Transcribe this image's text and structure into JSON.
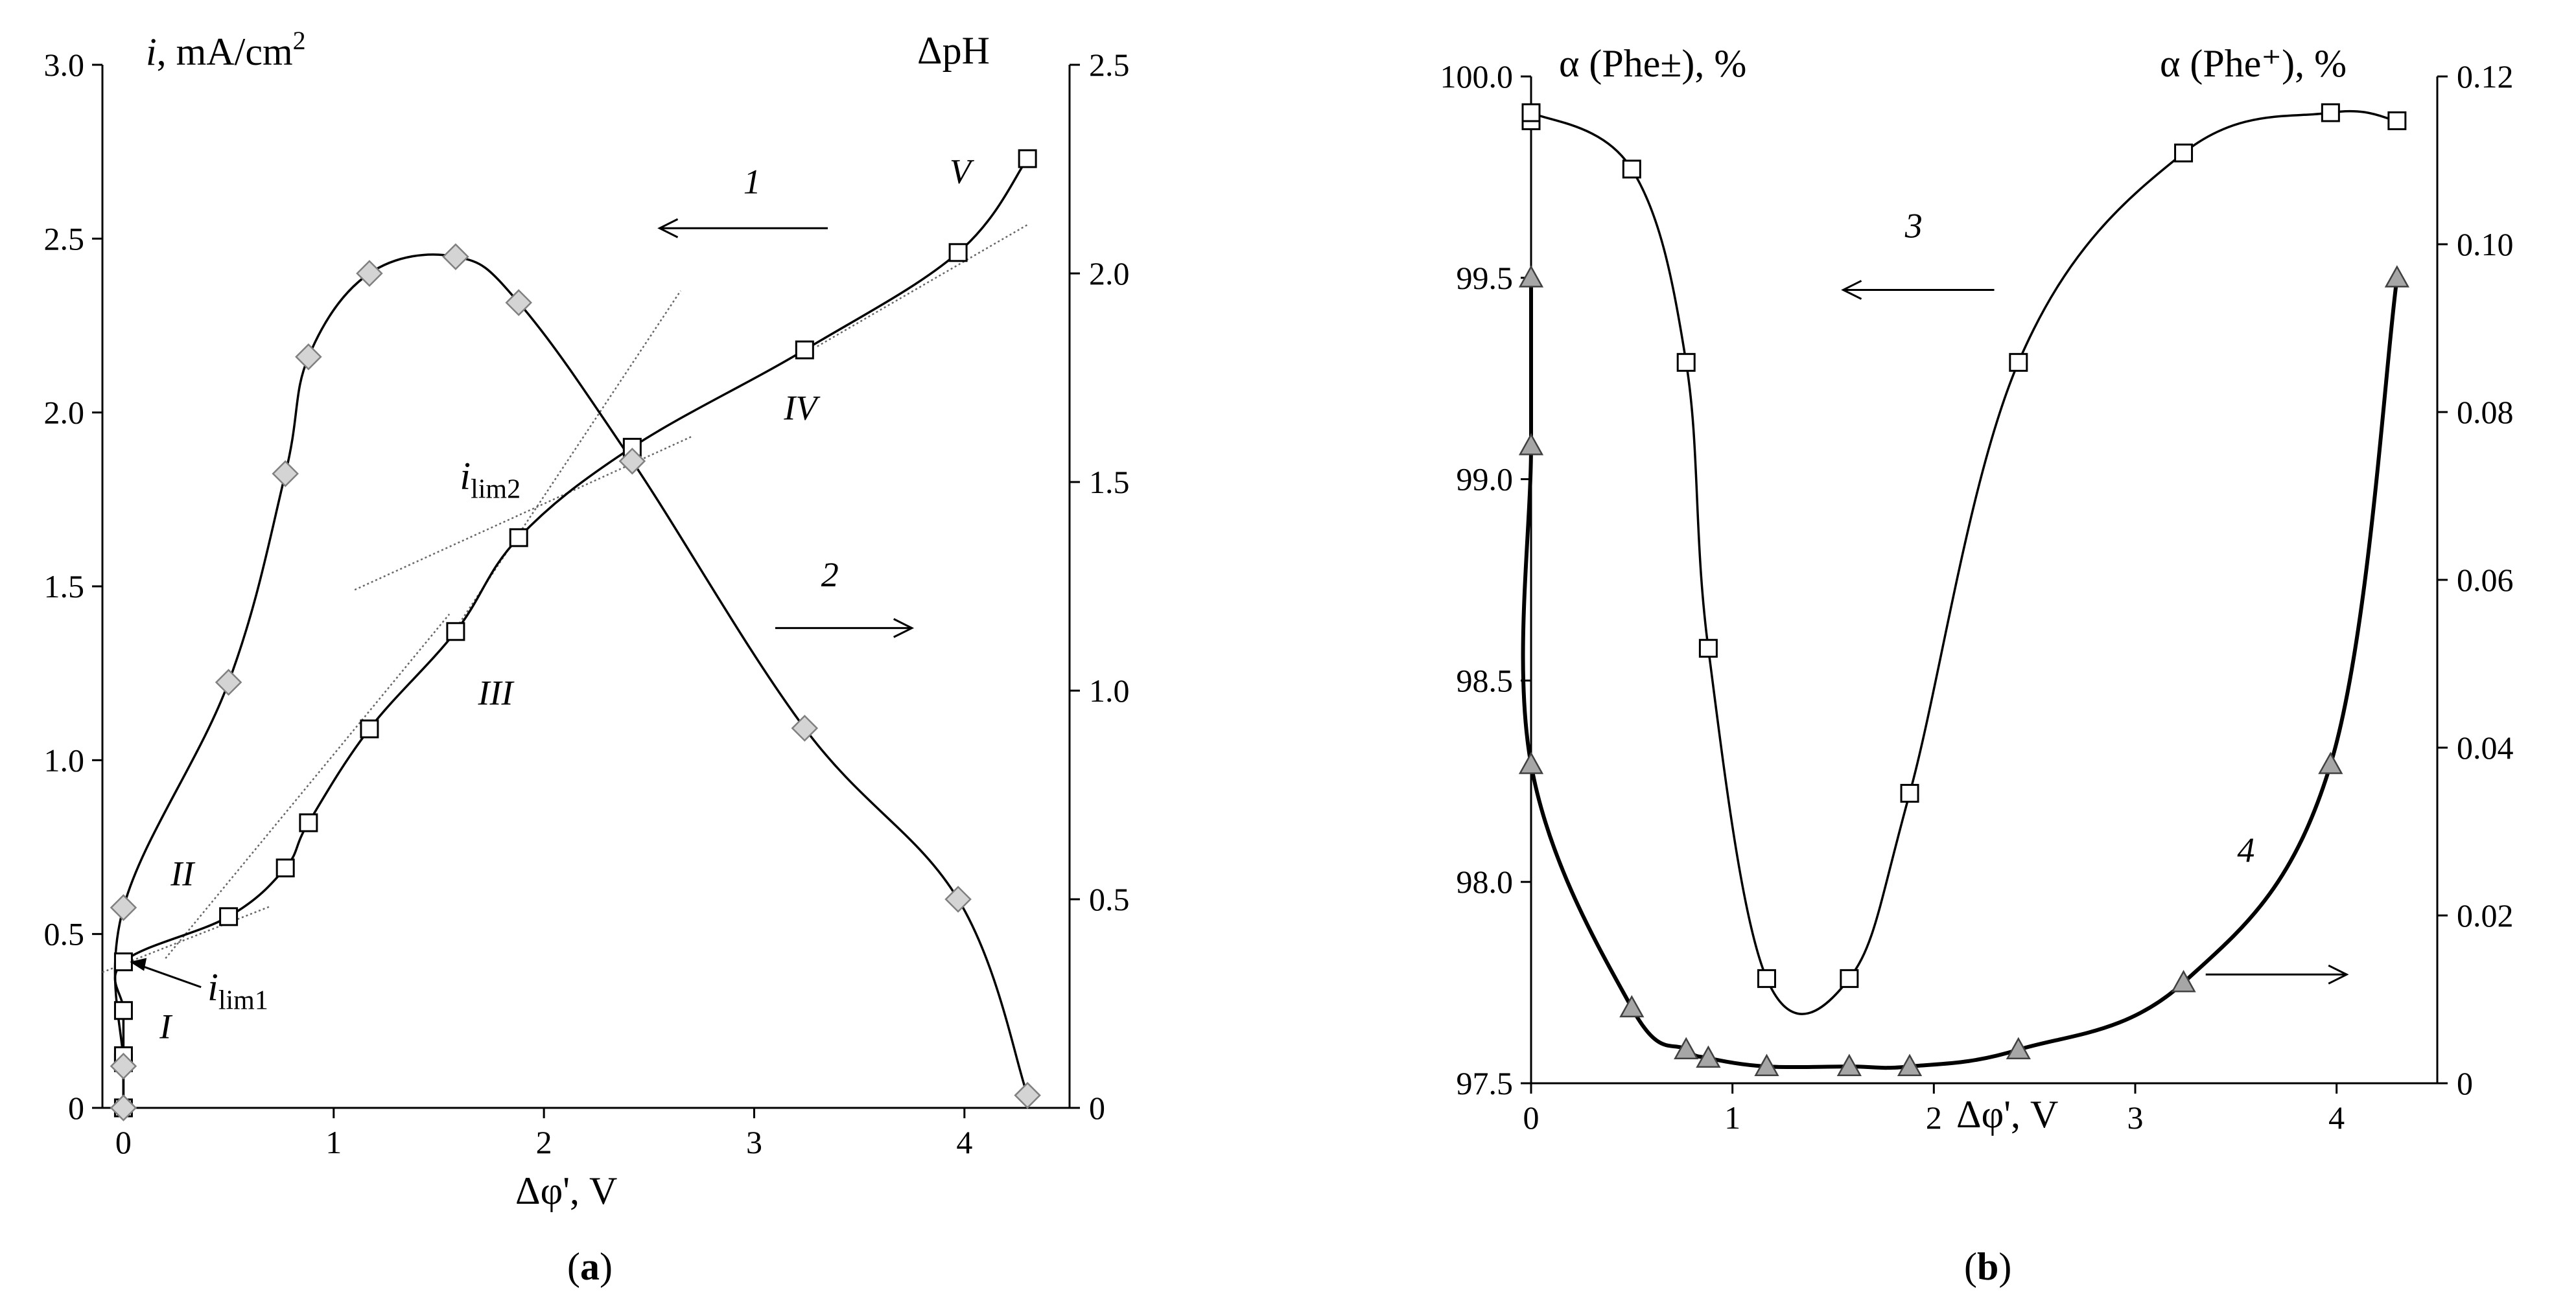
{
  "chart_data": [
    {
      "panel": "a",
      "type": "scatter",
      "caption": "a",
      "y_axis_left": {
        "label_main": "i",
        "label_rest": ", mA/cm",
        "label_sup": "2",
        "range": [
          0,
          3.0
        ],
        "ticks": [
          "0",
          "0.5",
          "1.0",
          "1.5",
          "2.0",
          "2.5",
          "3.0"
        ]
      },
      "y_axis_right": {
        "label": "ΔpH",
        "range": [
          0,
          2.5
        ],
        "ticks": [
          "0",
          "0.5",
          "1.0",
          "1.5",
          "2.0",
          "2.5"
        ]
      },
      "x_axis": {
        "label": "Δφ', V",
        "range": [
          -0.1,
          4.5
        ],
        "ticks": [
          "0",
          "1",
          "2",
          "3",
          "4"
        ]
      },
      "series": [
        {
          "id": "1",
          "axis": "left",
          "marker": "square",
          "x": [
            0,
            0,
            0,
            0,
            0,
            0.5,
            0.77,
            0.88,
            1.17,
            1.58,
            1.88,
            2.42,
            3.24,
            3.97,
            4.3
          ],
          "y": [
            0,
            0.13,
            0.15,
            0.28,
            0.42,
            0.55,
            0.69,
            0.82,
            1.09,
            1.37,
            1.64,
            1.9,
            2.18,
            2.46,
            2.73
          ]
        },
        {
          "id": "2",
          "axis": "right",
          "marker": "diamond",
          "x": [
            0,
            0,
            0,
            0.5,
            0.77,
            0.88,
            1.17,
            1.58,
            1.88,
            2.42,
            3.24,
            3.97,
            4.3
          ],
          "y": [
            0,
            0.1,
            0.48,
            1.02,
            1.52,
            1.8,
            2.0,
            2.04,
            1.93,
            1.55,
            0.91,
            0.5,
            0.03
          ]
        }
      ],
      "tangent_lines": [
        {
          "x": [
            -0.1,
            0.7
          ],
          "y": [
            0.39,
            0.58
          ]
        },
        {
          "x": [
            0.2,
            1.55
          ],
          "y": [
            0.43,
            1.42
          ]
        },
        {
          "x": [
            1.1,
            2.7
          ],
          "y": [
            1.49,
            1.93
          ]
        },
        {
          "x": [
            1.55,
            2.65
          ],
          "y": [
            1.35,
            2.35
          ]
        },
        {
          "x": [
            3.3,
            4.3
          ],
          "y": [
            2.19,
            2.54
          ]
        }
      ],
      "annotations": [
        {
          "text": "I",
          "x": 0.2,
          "y": 0.2
        },
        {
          "text": "II",
          "x": 0.28,
          "y": 0.64
        },
        {
          "text": "III",
          "x": 1.77,
          "y": 1.16
        },
        {
          "text": "IV",
          "x": 3.22,
          "y": 1.98
        },
        {
          "text": "V",
          "x": 3.98,
          "y": 2.66
        },
        {
          "text": "1",
          "x": 2.99,
          "y": 2.63
        },
        {
          "text": "2",
          "x": 3.36,
          "y": 1.5
        }
      ],
      "ilim1": {
        "main": "i",
        "sub": "lim1",
        "x": 0.4,
        "y": 0.31,
        "arrow_to": [
          0.03,
          0.42
        ]
      },
      "ilim2": {
        "main": "i",
        "sub": "lim2",
        "x": 1.6,
        "y": 1.78
      },
      "arrows": [
        {
          "from": [
            3.35,
            2.53
          ],
          "to": [
            2.55,
            2.53
          ]
        },
        {
          "from": [
            3.1,
            1.38
          ],
          "to": [
            3.75,
            1.38
          ]
        }
      ]
    },
    {
      "panel": "b",
      "type": "scatter",
      "caption": "b",
      "y_axis_left": {
        "label": "α (Phe±), %",
        "range": [
          97.5,
          100.0
        ],
        "ticks": [
          "97.5",
          "98.0",
          "98.5",
          "99.0",
          "99.5",
          "100.0"
        ]
      },
      "y_axis_right": {
        "label": "α (Phe⁺), %",
        "range": [
          0,
          0.12
        ],
        "ticks": [
          "0",
          "0.02",
          "0.04",
          "0.06",
          "0.08",
          "0.10",
          "0.12"
        ]
      },
      "x_axis": {
        "label": "Δφ', V",
        "range": [
          0,
          4.5
        ],
        "ticks": [
          "0",
          "1",
          "2",
          "3",
          "4"
        ]
      },
      "series": [
        {
          "id": "3",
          "axis": "left",
          "marker": "square",
          "x": [
            0,
            0,
            0.5,
            0.77,
            0.88,
            1.17,
            1.58,
            1.88,
            2.42,
            3.24,
            3.97,
            4.3
          ],
          "y": [
            99.89,
            99.91,
            99.77,
            99.29,
            98.58,
            97.76,
            97.76,
            98.22,
            99.29,
            99.81,
            99.91,
            99.89
          ]
        },
        {
          "id": "4",
          "axis": "right",
          "marker": "triangle",
          "x": [
            0,
            0,
            0,
            0.5,
            0.77,
            0.88,
            1.17,
            1.58,
            1.88,
            2.42,
            3.24,
            3.97,
            4.3
          ],
          "y": [
            0.096,
            0.076,
            0.038,
            0.009,
            0.004,
            0.003,
            0.002,
            0.002,
            0.002,
            0.004,
            0.012,
            0.038,
            0.096
          ]
        }
      ],
      "annotations": [
        {
          "text": "3",
          "x": 1.9,
          "y": 99.6
        },
        {
          "text": "4",
          "x": 3.55,
          "y": 98.05
        }
      ],
      "arrows": [
        {
          "from": [
            2.3,
            99.47
          ],
          "to": [
            1.55,
            99.47
          ]
        },
        {
          "from": [
            3.35,
            97.77
          ],
          "to": [
            4.05,
            97.77
          ]
        }
      ]
    }
  ]
}
